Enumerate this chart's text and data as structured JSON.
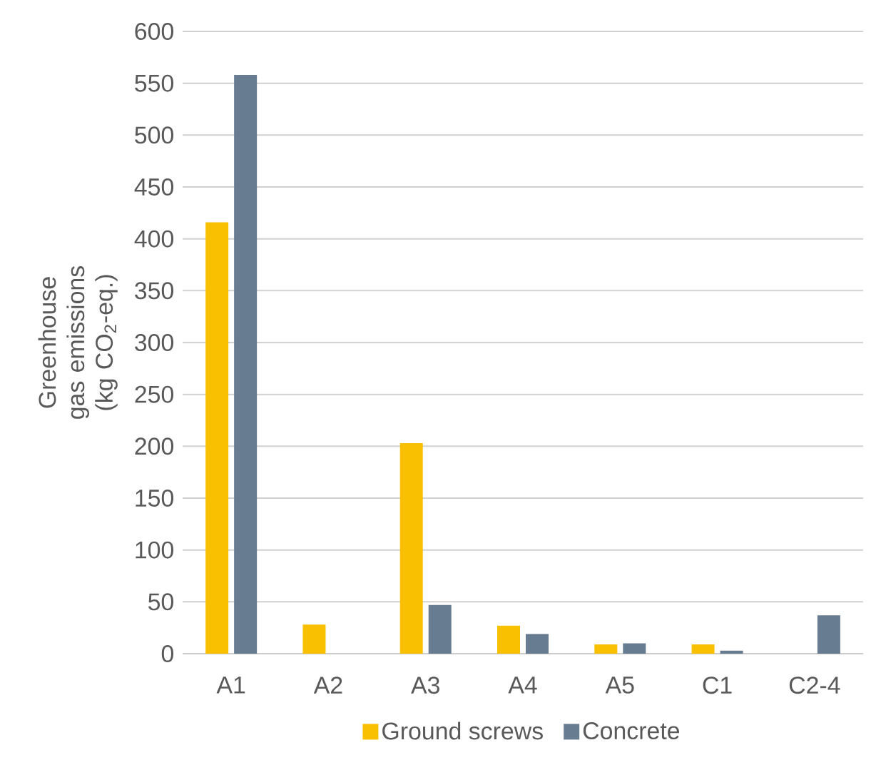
{
  "chart_data": {
    "type": "bar",
    "ylabel": "Greenhouse gas emissions (kg CO$_{2}$-eq.)",
    "categories": [
      "A1",
      "A2",
      "A3",
      "A4",
      "A5",
      "C1",
      "C2-4"
    ],
    "series": [
      {
        "name": "Ground screws",
        "color": "#f8c000",
        "values": [
          416,
          28,
          203,
          27,
          9,
          9,
          0
        ]
      },
      {
        "name": "Concrete",
        "color": "#687c91",
        "values": [
          558,
          0,
          47,
          19,
          10,
          3,
          37
        ]
      }
    ],
    "ylim": [
      0,
      600
    ],
    "yticks": [
      0,
      50,
      100,
      150,
      200,
      250,
      300,
      350,
      400,
      450,
      500,
      550,
      600
    ],
    "grid": "y",
    "legend": "bottom"
  }
}
